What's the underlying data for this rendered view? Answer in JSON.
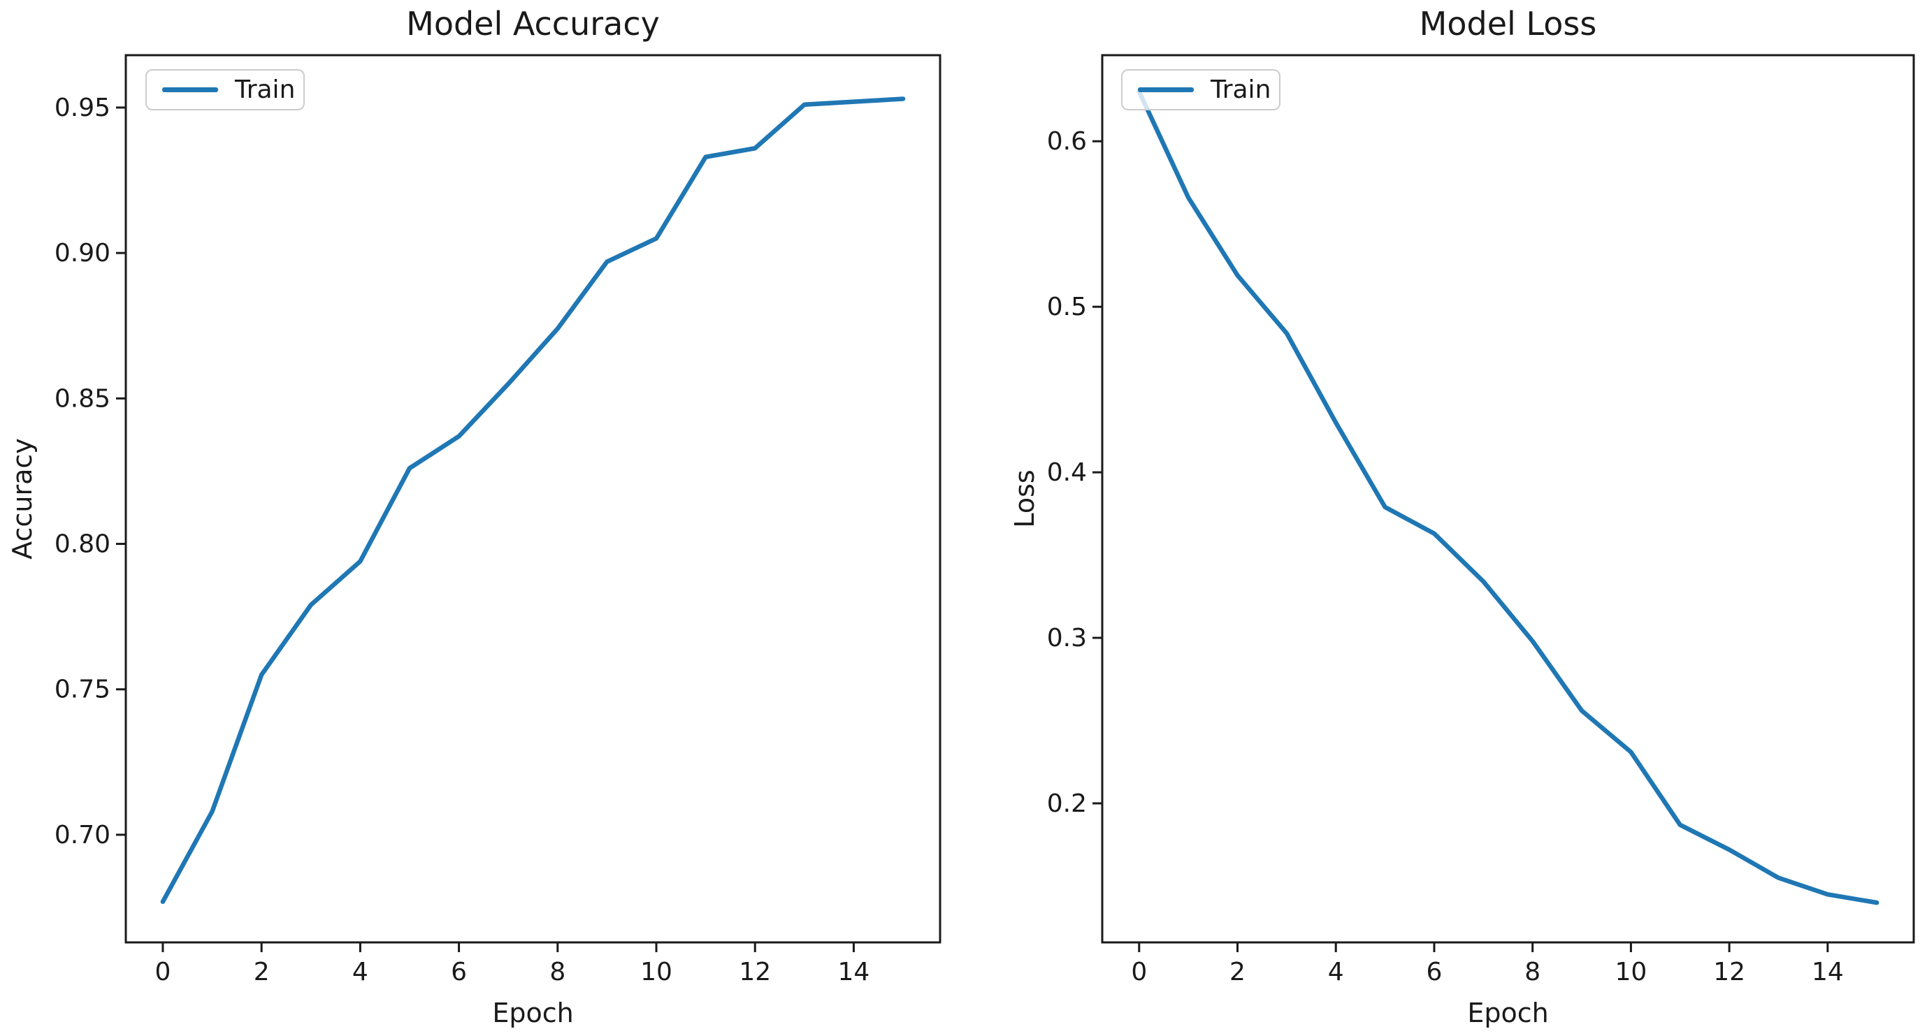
{
  "figure": {
    "background": "#ffffff",
    "line_color": "#1f77b4",
    "spine_color": "#1a1a1a",
    "text_color": "#1a1a1a"
  },
  "chart_data": [
    {
      "type": "line",
      "title": "Model Accuracy",
      "xlabel": "Epoch",
      "ylabel": "Accuracy",
      "legend_entries": [
        "Train"
      ],
      "legend_position": "upper left",
      "grid": false,
      "x": [
        0,
        1,
        2,
        3,
        4,
        5,
        6,
        7,
        8,
        9,
        10,
        11,
        12,
        13,
        14,
        15
      ],
      "series": [
        {
          "name": "Train",
          "color": "#1f77b4",
          "values": [
            0.677,
            0.708,
            0.755,
            0.779,
            0.794,
            0.826,
            0.837,
            0.855,
            0.874,
            0.897,
            0.905,
            0.933,
            0.936,
            0.951,
            0.952,
            0.953
          ]
        }
      ],
      "xlim": [
        -0.75,
        15.75
      ],
      "ylim": [
        0.663,
        0.968
      ],
      "xticks": [
        0,
        2,
        4,
        6,
        8,
        10,
        12,
        14
      ],
      "xtick_labels": [
        "0",
        "2",
        "4",
        "6",
        "8",
        "10",
        "12",
        "14"
      ],
      "yticks": [
        0.7,
        0.75,
        0.8,
        0.85,
        0.9,
        0.95
      ],
      "ytick_labels": [
        "0.70",
        "0.75",
        "0.80",
        "0.85",
        "0.90",
        "0.95"
      ]
    },
    {
      "type": "line",
      "title": "Model Loss",
      "xlabel": "Epoch",
      "ylabel": "Loss",
      "legend_entries": [
        "Train"
      ],
      "legend_position": "upper left",
      "grid": false,
      "x": [
        0,
        1,
        2,
        3,
        4,
        5,
        6,
        7,
        8,
        9,
        10,
        11,
        12,
        13,
        14,
        15
      ],
      "series": [
        {
          "name": "Train",
          "color": "#1f77b4",
          "values": [
            0.63,
            0.566,
            0.519,
            0.484,
            0.43,
            0.379,
            0.363,
            0.334,
            0.298,
            0.256,
            0.231,
            0.187,
            0.172,
            0.155,
            0.145,
            0.14
          ]
        }
      ],
      "xlim": [
        -0.75,
        15.75
      ],
      "ylim": [
        0.116,
        0.652
      ],
      "xticks": [
        0,
        2,
        4,
        6,
        8,
        10,
        12,
        14
      ],
      "xtick_labels": [
        "0",
        "2",
        "4",
        "6",
        "8",
        "10",
        "12",
        "14"
      ],
      "yticks": [
        0.2,
        0.3,
        0.4,
        0.5,
        0.6
      ],
      "ytick_labels": [
        "0.2",
        "0.3",
        "0.4",
        "0.5",
        "0.6"
      ]
    }
  ]
}
